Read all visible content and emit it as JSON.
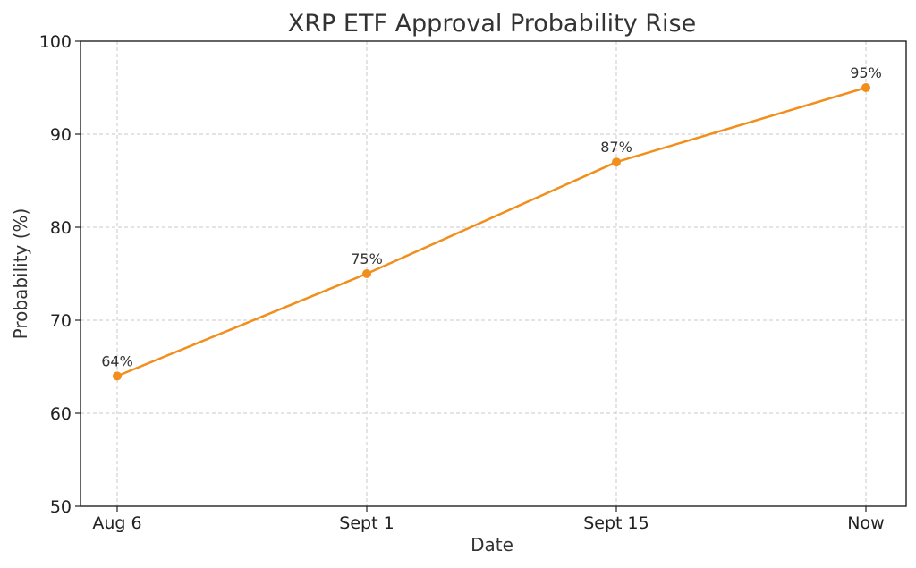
{
  "chart_data": {
    "type": "line",
    "title": "XRP ETF Approval Probability Rise",
    "xlabel": "Date",
    "ylabel": "Probability (%)",
    "categories": [
      "Aug 6",
      "Sept 1",
      "Sept 15",
      "Now"
    ],
    "series": [
      {
        "values": [
          64,
          75,
          87,
          95
        ],
        "labels": [
          "64%",
          "75%",
          "87%",
          "95%"
        ],
        "color": "#f28e1c"
      }
    ],
    "ylim": [
      50,
      100
    ],
    "yticks": [
      50,
      60,
      70,
      80,
      90,
      100
    ],
    "grid": true,
    "legend": "none"
  }
}
